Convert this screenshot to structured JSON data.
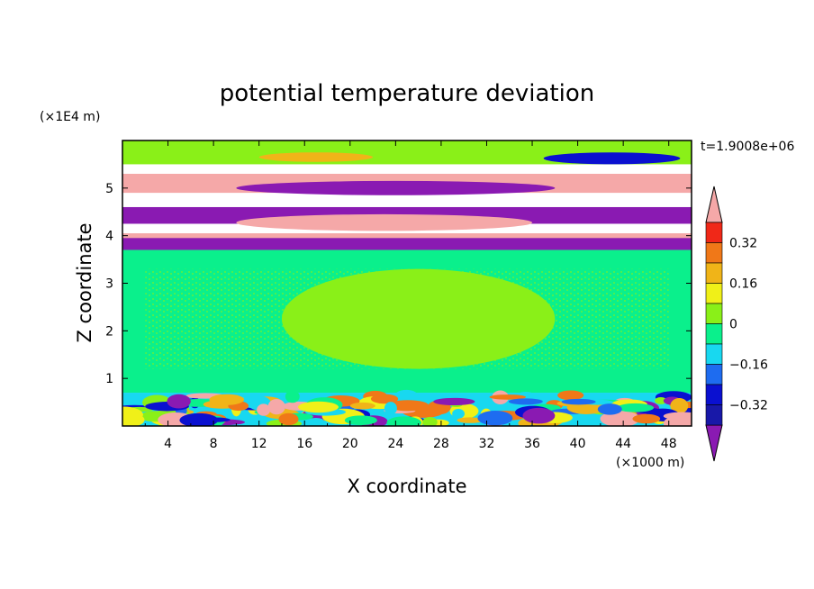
{
  "chart_data": {
    "type": "heatmap",
    "title": "potential temperature deviation",
    "xlabel": "X coordinate",
    "ylabel": "Z coordinate",
    "x_unit": "(×1000 m)",
    "y_unit": "(×1E4 m)",
    "time_label": "t=1.9008e+06",
    "xlim": [
      0,
      50
    ],
    "ylim": [
      0,
      6
    ],
    "x_ticks": [
      4,
      8,
      12,
      16,
      20,
      24,
      28,
      32,
      36,
      40,
      44,
      48
    ],
    "y_ticks": [
      1,
      2,
      3,
      4,
      5
    ],
    "colorbar": {
      "levels": [
        {
          "lo": null,
          "hi": -0.4,
          "color": "#8a1ab2"
        },
        {
          "lo": -0.4,
          "hi": -0.32,
          "color": "#1818a8"
        },
        {
          "lo": -0.32,
          "hi": -0.24,
          "color": "#0a10d0"
        },
        {
          "lo": -0.24,
          "hi": -0.16,
          "color": "#1e6cf0"
        },
        {
          "lo": -0.16,
          "hi": -0.08,
          "color": "#18d8f0"
        },
        {
          "lo": -0.08,
          "hi": 0,
          "color": "#0af08c"
        },
        {
          "lo": 0,
          "hi": 0.08,
          "color": "#8af018"
        },
        {
          "lo": 0.08,
          "hi": 0.16,
          "color": "#f0f018"
        },
        {
          "lo": 0.16,
          "hi": 0.24,
          "color": "#f0b418"
        },
        {
          "lo": 0.24,
          "hi": 0.32,
          "color": "#f07818"
        },
        {
          "lo": 0.32,
          "hi": 0.4,
          "color": "#f02818"
        },
        {
          "lo": 0.4,
          "hi": null,
          "color": "#f5a8a8"
        }
      ],
      "tick_labels": [
        "0.32",
        "0.16",
        "0",
        "−0.16",
        "−0.32"
      ]
    },
    "regions": [
      {
        "value": -0.04,
        "x": [
          0,
          50
        ],
        "y": [
          0.7,
          3.7
        ],
        "note": "background"
      },
      {
        "value": 0.04,
        "x": [
          14,
          38
        ],
        "y": [
          1.2,
          3.3
        ]
      },
      {
        "value": 0.04,
        "x": [
          0,
          50
        ],
        "y": [
          5.5,
          6.0
        ]
      },
      {
        "value": 0.5,
        "x": [
          0,
          50
        ],
        "y": [
          4.9,
          5.3
        ]
      },
      {
        "value": -0.5,
        "x": [
          10,
          38
        ],
        "y": [
          4.85,
          5.15
        ]
      },
      {
        "value": 0.2,
        "x": [
          12,
          22
        ],
        "y": [
          5.55,
          5.75
        ]
      },
      {
        "value": -0.3,
        "x": [
          37,
          49
        ],
        "y": [
          5.5,
          5.75
        ]
      },
      {
        "value": -0.5,
        "x": [
          0,
          50
        ],
        "y": [
          4.25,
          4.6
        ]
      },
      {
        "value": 0.5,
        "x": [
          10,
          36
        ],
        "y": [
          4.1,
          4.45
        ]
      },
      {
        "value": 0.5,
        "x": [
          0,
          50
        ],
        "y": [
          3.75,
          4.05
        ]
      },
      {
        "value": -0.5,
        "x": [
          0,
          50
        ],
        "y": [
          3.7,
          3.95
        ]
      },
      {
        "value": -0.1,
        "x": [
          0,
          50
        ],
        "y": [
          0,
          0.7
        ],
        "note": "turbulent boundary layer"
      }
    ]
  }
}
